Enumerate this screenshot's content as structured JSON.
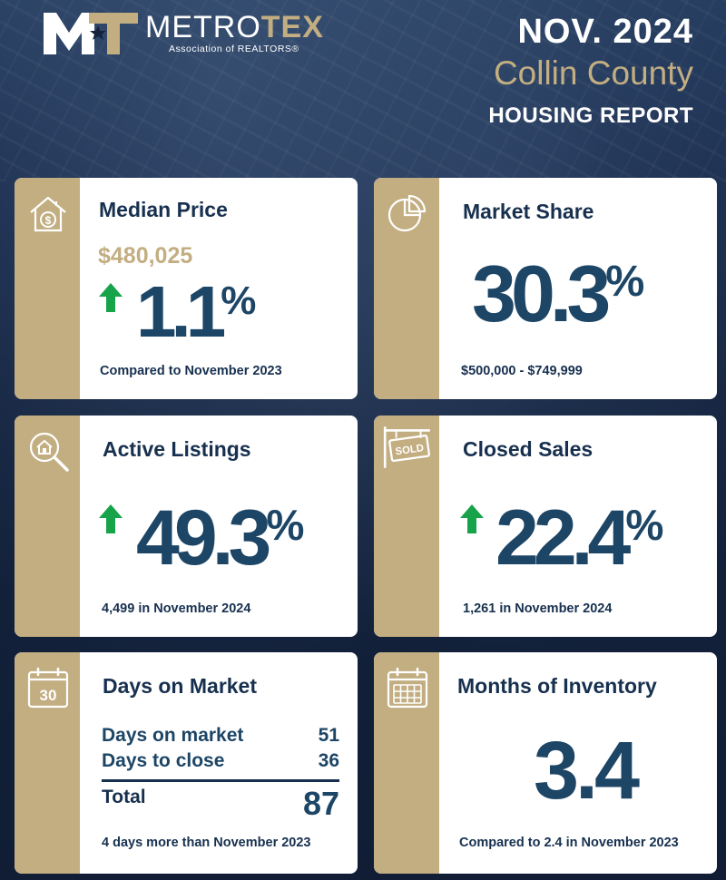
{
  "header": {
    "logo_metro": "METRO",
    "logo_tex": "TEX",
    "logo_sub": "Association of REALTORS®",
    "date": "NOV. 2024",
    "county": "Collin County",
    "report": "HOUSING REPORT"
  },
  "colors": {
    "navy": "#13223d",
    "gold": "#c3ae82",
    "value_blue": "#1c4566",
    "arrow_green": "#17a34a"
  },
  "cards": {
    "median_price": {
      "title": "Median Price",
      "price": "$480,025",
      "change": "1.1",
      "pct": "%",
      "direction": "up",
      "caption": "Compared to November 2023",
      "icon": "house-dollar-icon"
    },
    "market_share": {
      "title": "Market Share",
      "value": "30.3",
      "pct": "%",
      "caption": "$500,000 - $749,999",
      "icon": "pie-chart-icon"
    },
    "active_listings": {
      "title": "Active Listings",
      "change": "49.3",
      "pct": "%",
      "direction": "up",
      "caption": "4,499 in November 2024",
      "icon": "house-search-icon"
    },
    "closed_sales": {
      "title": "Closed Sales",
      "change": "22.4",
      "pct": "%",
      "direction": "up",
      "caption": "1,261 in November 2024",
      "icon": "sold-sign-icon"
    },
    "days_on_market": {
      "title": "Days on Market",
      "icon_text": "30",
      "row1_label": "Days on market",
      "row1_value": "51",
      "row2_label": "Days to close",
      "row2_value": "36",
      "total_label": "Total",
      "total_value": "87",
      "caption": "4 days more than November 2023",
      "icon": "calendar-30-icon"
    },
    "months_inventory": {
      "title": "Months of Inventory",
      "value": "3.4",
      "caption": "Compared to 2.4 in November 2023",
      "icon": "calendar-grid-icon"
    }
  }
}
